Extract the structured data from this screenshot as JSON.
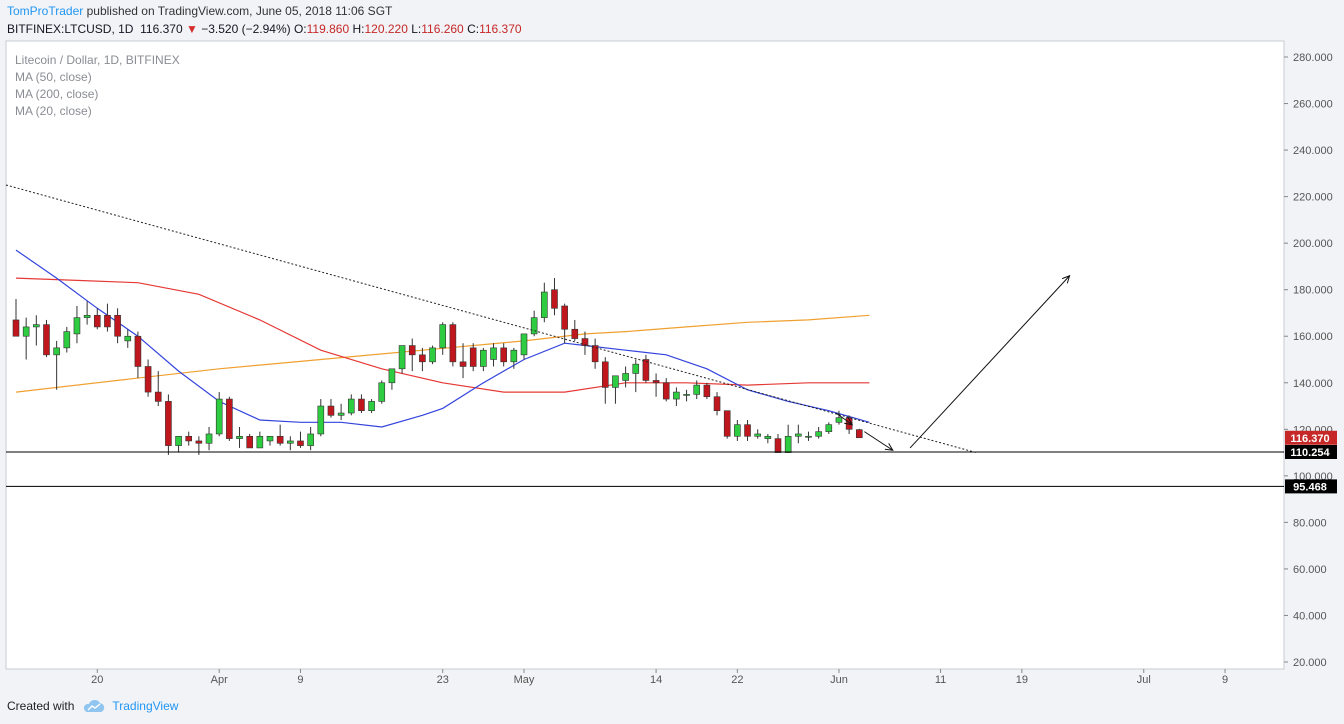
{
  "header": {
    "author": "TomProTrader",
    "published": "published on TradingView.com, June 05, 2018 11:06 SGT",
    "symbol": "BITFINEX:LTCUSD, 1D",
    "last": "116.370",
    "change_arrow": "▼",
    "change": "−3.520 (−2.94%)",
    "o_label": "O:",
    "o": "119.860",
    "h_label": "H:",
    "h": "120.220",
    "l_label": "L:",
    "l": "116.260",
    "c_label": "C:",
    "c": "116.370"
  },
  "legend": [
    "Litecoin / Dollar, 1D, BITFINEX",
    "MA (50, close)",
    "MA (200, close)",
    "MA (20, close)"
  ],
  "footer": {
    "created_with": "Created with",
    "brand": "TradingView"
  },
  "colors": {
    "up": "#2ecc40",
    "down": "#c0171e",
    "ma50": "#e53935",
    "ma200": "#f0a030",
    "ma20": "#3344dd",
    "accent": "#2196f3",
    "price_label": "#c62828"
  },
  "chart_data": {
    "type": "candlestick",
    "title": "Litecoin / Dollar, 1D, BITFINEX",
    "ylim": [
      17,
      287
    ],
    "y_ticks": [
      20,
      40,
      60,
      80,
      100,
      120,
      140,
      160,
      180,
      200,
      220,
      240,
      260,
      280
    ],
    "y_tick_labels": [
      "20.000",
      "40.000",
      "60.000",
      "80.000",
      "100.000",
      "120.000",
      "140.000",
      "160.000",
      "180.000",
      "200.000",
      "220.000",
      "240.000",
      "260.000",
      "280.000"
    ],
    "x_ticks": [
      {
        "label": "20",
        "day": 8
      },
      {
        "label": "Apr",
        "day": 20
      },
      {
        "label": "9",
        "day": 28
      },
      {
        "label": "23",
        "day": 42
      },
      {
        "label": "May",
        "day": 50
      },
      {
        "label": "14",
        "day": 63
      },
      {
        "label": "22",
        "day": 71
      },
      {
        "label": "Jun",
        "day": 81
      },
      {
        "label": "11",
        "day": 91
      },
      {
        "label": "19",
        "day": 99
      },
      {
        "label": "Jul",
        "day": 111
      },
      {
        "label": "9",
        "day": 119
      }
    ],
    "candles": [
      {
        "o": 167,
        "h": 176,
        "l": 160,
        "c": 160
      },
      {
        "o": 160,
        "h": 168,
        "l": 150,
        "c": 164
      },
      {
        "o": 164,
        "h": 169,
        "l": 156,
        "c": 165
      },
      {
        "o": 165,
        "h": 167,
        "l": 151,
        "c": 152
      },
      {
        "o": 152,
        "h": 158,
        "l": 137,
        "c": 155
      },
      {
        "o": 155,
        "h": 164,
        "l": 153,
        "c": 162
      },
      {
        "o": 161,
        "h": 173,
        "l": 157,
        "c": 168
      },
      {
        "o": 168,
        "h": 175,
        "l": 165,
        "c": 169
      },
      {
        "o": 169,
        "h": 172,
        "l": 163,
        "c": 164
      },
      {
        "o": 169,
        "h": 174,
        "l": 162,
        "c": 164
      },
      {
        "o": 169,
        "h": 172,
        "l": 157,
        "c": 160
      },
      {
        "o": 158,
        "h": 163,
        "l": 155,
        "c": 160
      },
      {
        "o": 160,
        "h": 162,
        "l": 142,
        "c": 147
      },
      {
        "o": 147,
        "h": 150,
        "l": 134,
        "c": 136
      },
      {
        "o": 136,
        "h": 145,
        "l": 130,
        "c": 132
      },
      {
        "o": 132,
        "h": 135,
        "l": 109,
        "c": 113
      },
      {
        "o": 113,
        "h": 117,
        "l": 110,
        "c": 117
      },
      {
        "o": 117,
        "h": 119,
        "l": 113,
        "c": 115
      },
      {
        "o": 115,
        "h": 117,
        "l": 109,
        "c": 114
      },
      {
        "o": 114,
        "h": 121,
        "l": 111,
        "c": 118
      },
      {
        "o": 118,
        "h": 136,
        "l": 117,
        "c": 133
      },
      {
        "o": 133,
        "h": 134,
        "l": 115,
        "c": 116
      },
      {
        "o": 116,
        "h": 121,
        "l": 112,
        "c": 117
      },
      {
        "o": 117,
        "h": 118,
        "l": 112,
        "c": 112
      },
      {
        "o": 112,
        "h": 119,
        "l": 112,
        "c": 117
      },
      {
        "o": 115,
        "h": 117,
        "l": 113,
        "c": 117
      },
      {
        "o": 117,
        "h": 122,
        "l": 113,
        "c": 114
      },
      {
        "o": 114,
        "h": 117,
        "l": 111,
        "c": 115
      },
      {
        "o": 115,
        "h": 119,
        "l": 112,
        "c": 113
      },
      {
        "o": 113,
        "h": 121,
        "l": 111,
        "c": 118
      },
      {
        "o": 118,
        "h": 133,
        "l": 117,
        "c": 130
      },
      {
        "o": 130,
        "h": 133,
        "l": 125,
        "c": 126
      },
      {
        "o": 126,
        "h": 131,
        "l": 124,
        "c": 127
      },
      {
        "o": 127,
        "h": 135,
        "l": 126,
        "c": 133
      },
      {
        "o": 133,
        "h": 135,
        "l": 127,
        "c": 128
      },
      {
        "o": 128,
        "h": 133,
        "l": 127,
        "c": 132
      },
      {
        "o": 132,
        "h": 141,
        "l": 131,
        "c": 140
      },
      {
        "o": 140,
        "h": 146,
        "l": 137,
        "c": 146
      },
      {
        "o": 146,
        "h": 156,
        "l": 144,
        "c": 156
      },
      {
        "o": 156,
        "h": 159,
        "l": 145,
        "c": 152
      },
      {
        "o": 152,
        "h": 155,
        "l": 145,
        "c": 149
      },
      {
        "o": 149,
        "h": 156,
        "l": 148,
        "c": 155
      },
      {
        "o": 155,
        "h": 166,
        "l": 152,
        "c": 165
      },
      {
        "o": 165,
        "h": 166,
        "l": 147,
        "c": 149
      },
      {
        "o": 149,
        "h": 157,
        "l": 142,
        "c": 147
      },
      {
        "o": 155,
        "h": 157,
        "l": 145,
        "c": 147
      },
      {
        "o": 147,
        "h": 155,
        "l": 145,
        "c": 154
      },
      {
        "o": 150,
        "h": 157,
        "l": 147,
        "c": 155
      },
      {
        "o": 155,
        "h": 157,
        "l": 147,
        "c": 149
      },
      {
        "o": 149,
        "h": 155,
        "l": 146,
        "c": 154
      },
      {
        "o": 152,
        "h": 160,
        "l": 150,
        "c": 161
      },
      {
        "o": 161,
        "h": 171,
        "l": 160,
        "c": 168
      },
      {
        "o": 168,
        "h": 183,
        "l": 166,
        "c": 179
      },
      {
        "o": 180,
        "h": 185,
        "l": 169,
        "c": 172
      },
      {
        "o": 173,
        "h": 174,
        "l": 157,
        "c": 163
      },
      {
        "o": 163,
        "h": 167,
        "l": 158,
        "c": 159
      },
      {
        "o": 159,
        "h": 162,
        "l": 152,
        "c": 156
      },
      {
        "o": 156,
        "h": 159,
        "l": 146,
        "c": 149
      },
      {
        "o": 149,
        "h": 151,
        "l": 131,
        "c": 138
      },
      {
        "o": 138,
        "h": 143,
        "l": 131,
        "c": 143
      },
      {
        "o": 141,
        "h": 147,
        "l": 138,
        "c": 144
      },
      {
        "o": 144,
        "h": 150,
        "l": 136,
        "c": 148
      },
      {
        "o": 150,
        "h": 152,
        "l": 140,
        "c": 141
      },
      {
        "o": 141,
        "h": 144,
        "l": 134,
        "c": 140
      },
      {
        "o": 140,
        "h": 142,
        "l": 132,
        "c": 133
      },
      {
        "o": 133,
        "h": 138,
        "l": 130,
        "c": 136
      },
      {
        "o": 135,
        "h": 137,
        "l": 132,
        "c": 135
      },
      {
        "o": 135,
        "h": 141,
        "l": 133,
        "c": 139
      },
      {
        "o": 139,
        "h": 140,
        "l": 133,
        "c": 134
      },
      {
        "o": 134,
        "h": 136,
        "l": 126,
        "c": 128
      },
      {
        "o": 128,
        "h": 128,
        "l": 116,
        "c": 117
      },
      {
        "o": 117,
        "h": 124,
        "l": 115,
        "c": 122
      },
      {
        "o": 122,
        "h": 124,
        "l": 115,
        "c": 117
      },
      {
        "o": 117,
        "h": 120,
        "l": 116,
        "c": 118
      },
      {
        "o": 116,
        "h": 118,
        "l": 114,
        "c": 117
      },
      {
        "o": 116,
        "h": 118,
        "l": 111,
        "c": 110
      },
      {
        "o": 110,
        "h": 122,
        "l": 110,
        "c": 117
      },
      {
        "o": 117,
        "h": 122,
        "l": 114,
        "c": 118
      },
      {
        "o": 117,
        "h": 119,
        "l": 115,
        "c": 117
      },
      {
        "o": 117,
        "h": 121,
        "l": 116,
        "c": 119
      },
      {
        "o": 119,
        "h": 123,
        "l": 118,
        "c": 122
      },
      {
        "o": 123,
        "h": 128,
        "l": 122,
        "c": 125
      },
      {
        "o": 125,
        "h": 126,
        "l": 118,
        "c": 120
      },
      {
        "o": 119.86,
        "h": 120.22,
        "l": 116.26,
        "c": 116.37
      }
    ],
    "ma50": [
      [
        0,
        185
      ],
      [
        6,
        184
      ],
      [
        12,
        183
      ],
      [
        18,
        178
      ],
      [
        24,
        167
      ],
      [
        30,
        154
      ],
      [
        36,
        146
      ],
      [
        42,
        140
      ],
      [
        48,
        136
      ],
      [
        54,
        136
      ],
      [
        60,
        140
      ],
      [
        66,
        140
      ],
      [
        72,
        139
      ],
      [
        78,
        140
      ],
      [
        84,
        140
      ]
    ],
    "ma200": [
      [
        0,
        136
      ],
      [
        10,
        141
      ],
      [
        20,
        146
      ],
      [
        30,
        150
      ],
      [
        40,
        154
      ],
      [
        50,
        158
      ],
      [
        56,
        161
      ],
      [
        60,
        162
      ],
      [
        66,
        164
      ],
      [
        72,
        166
      ],
      [
        78,
        167
      ],
      [
        84,
        169
      ]
    ],
    "ma20": [
      [
        0,
        197
      ],
      [
        4,
        185
      ],
      [
        8,
        172
      ],
      [
        12,
        160
      ],
      [
        16,
        145
      ],
      [
        20,
        132
      ],
      [
        24,
        124
      ],
      [
        28,
        123
      ],
      [
        32,
        123
      ],
      [
        36,
        121
      ],
      [
        40,
        126
      ],
      [
        42,
        129
      ],
      [
        46,
        140
      ],
      [
        50,
        150
      ],
      [
        54,
        157
      ],
      [
        56,
        156
      ],
      [
        60,
        154
      ],
      [
        64,
        152
      ],
      [
        68,
        146
      ],
      [
        72,
        137
      ],
      [
        76,
        132
      ],
      [
        80,
        128
      ],
      [
        84,
        123
      ]
    ],
    "trendline": {
      "start": [
        0,
        225
      ],
      "end": [
        94.5,
        110
      ]
    },
    "horizontal_levels": [
      {
        "value": 110.254,
        "label": "110.254"
      },
      {
        "value": 95.468,
        "label": "95.468"
      }
    ],
    "last_price": {
      "value": 116.37,
      "label": "116.370"
    },
    "arrows": [
      {
        "from": [
          80.7,
          127
        ],
        "to": [
          82.3,
          122
        ]
      },
      {
        "from": [
          83.5,
          119
        ],
        "to": [
          86.3,
          111
        ]
      },
      {
        "from": [
          88.0,
          112
        ],
        "to": [
          103.7,
          186
        ]
      }
    ]
  }
}
